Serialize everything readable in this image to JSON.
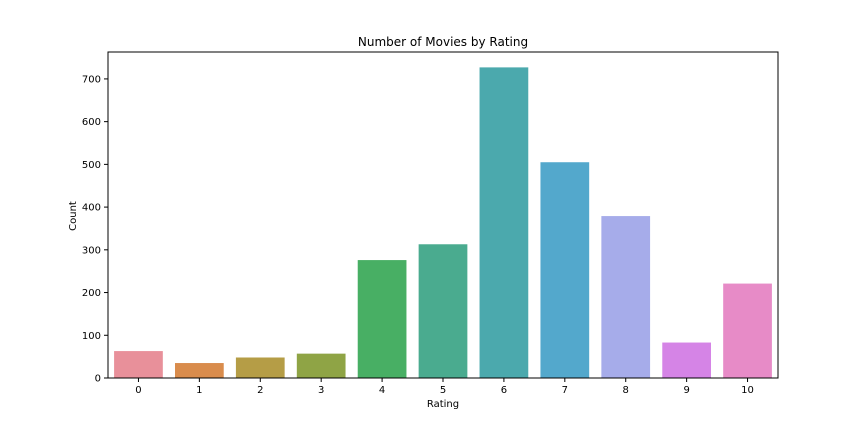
{
  "chart_data": {
    "type": "bar",
    "title": "Number of Movies by Rating",
    "xlabel": "Rating",
    "ylabel": "Count",
    "categories": [
      "0",
      "1",
      "2",
      "3",
      "4",
      "5",
      "6",
      "7",
      "8",
      "9",
      "10"
    ],
    "values": [
      63,
      35,
      48,
      57,
      276,
      313,
      727,
      505,
      379,
      83,
      221
    ],
    "ylim": [
      0,
      763
    ],
    "yticks": [
      0,
      100,
      200,
      300,
      400,
      500,
      600,
      700
    ],
    "grid": false,
    "legend": "none",
    "colors": [
      "#e8909a",
      "#d98c4c",
      "#b59d46",
      "#8fa445",
      "#48af64",
      "#4aab8f",
      "#4ba9ad",
      "#53a8cc",
      "#a6acea",
      "#d584e6",
      "#e78bc7"
    ]
  }
}
